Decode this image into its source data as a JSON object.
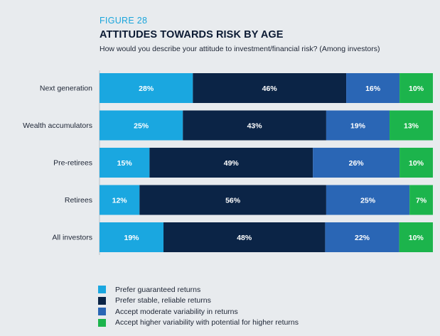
{
  "header": {
    "figure_label": "FIGURE 28",
    "title": "ATTITUDES TOWARDS RISK BY AGE",
    "subtitle": "How would you describe your attitude to investment/financial risk? (Among investors)"
  },
  "colors": {
    "background": "#e8ebee",
    "series": [
      "#1aa7e0",
      "#0b2446",
      "#2a66b5",
      "#1cb44c"
    ],
    "label_text": "#ffffff"
  },
  "chart_data": {
    "type": "bar",
    "orientation": "horizontal",
    "stacked": true,
    "categories": [
      "Next generation",
      "Wealth accumulators",
      "Pre-retirees",
      "Retirees",
      "All investors"
    ],
    "series": [
      {
        "name": "Prefer guaranteed returns",
        "values": [
          28,
          25,
          15,
          12,
          19
        ]
      },
      {
        "name": "Prefer stable, reliable returns",
        "values": [
          46,
          43,
          49,
          56,
          48
        ]
      },
      {
        "name": "Accept moderate variability in returns",
        "values": [
          16,
          19,
          26,
          25,
          22
        ]
      },
      {
        "name": "Accept higher variability with potential for higher returns",
        "values": [
          10,
          13,
          10,
          7,
          10
        ]
      }
    ],
    "value_labels": [
      [
        "28%",
        "46%",
        "16%",
        "10%"
      ],
      [
        "25%",
        "43%",
        "19%",
        "13%"
      ],
      [
        "15%",
        "49%",
        "26%",
        "10%"
      ],
      [
        "12%",
        "56%",
        "25%",
        "7%"
      ],
      [
        "19%",
        "48%",
        "22%",
        "10%"
      ]
    ],
    "value_suffix": "%",
    "xlim": [
      0,
      100
    ],
    "grid": false,
    "legend_position": "bottom-left"
  }
}
